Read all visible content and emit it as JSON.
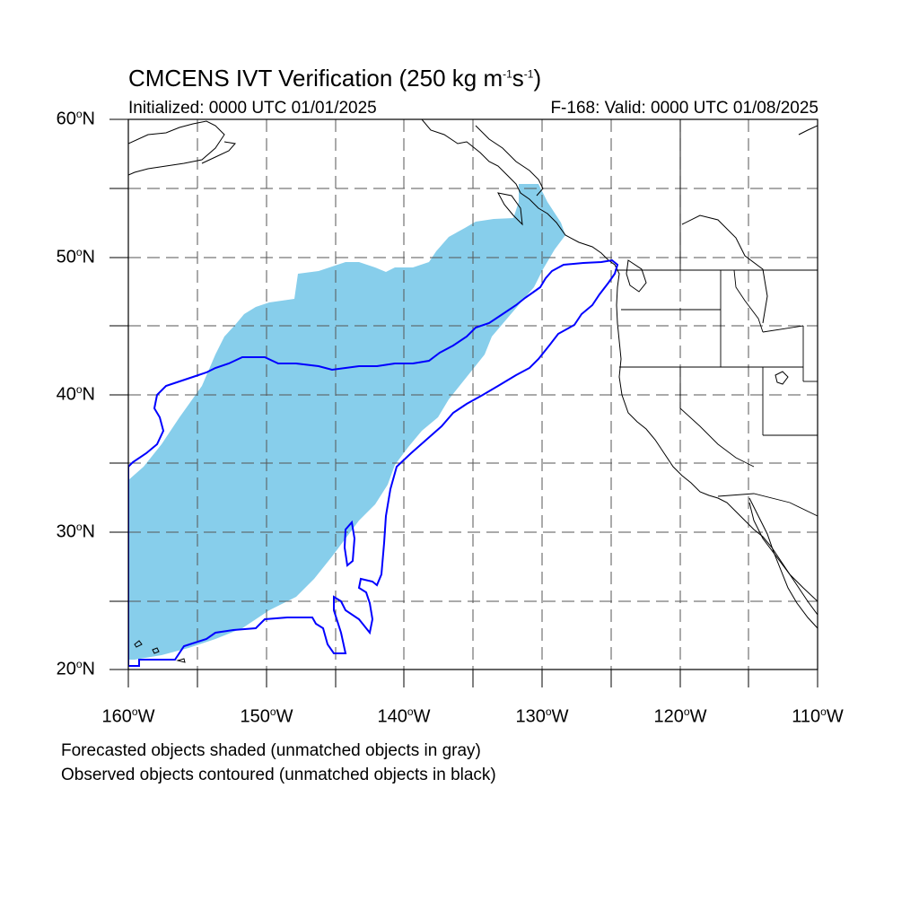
{
  "title": {
    "prefix": "CMCENS IVT Verification (250 kg m",
    "exp1": "-1",
    "mid": "s",
    "exp2": "-1",
    "suffix": ")"
  },
  "subtitle_left": "Initialized: 0000 UTC 01/01/2025",
  "subtitle_right": "F-168: Valid: 0000 UTC 01/08/2025",
  "map": {
    "extent": {
      "lon_min": -160,
      "lon_max": -110,
      "lat_min": 20,
      "lat_max": 60
    },
    "grid": "dashed, every 5 degrees",
    "forecast_fill_color": "#87ceeb",
    "observed_contour_color": "#0000ff",
    "coastline_color": "#000000"
  },
  "lat_labels": [
    {
      "deg": "60",
      "suffix": "N"
    },
    {
      "deg": "50",
      "suffix": "N"
    },
    {
      "deg": "40",
      "suffix": "N"
    },
    {
      "deg": "30",
      "suffix": "N"
    },
    {
      "deg": "20",
      "suffix": "N"
    }
  ],
  "lon_labels": [
    {
      "deg": "160",
      "suffix": "W"
    },
    {
      "deg": "150",
      "suffix": "W"
    },
    {
      "deg": "140",
      "suffix": "W"
    },
    {
      "deg": "130",
      "suffix": "W"
    },
    {
      "deg": "120",
      "suffix": "W"
    },
    {
      "deg": "110",
      "suffix": "W"
    }
  ],
  "footnotes": [
    "Forecasted objects shaded (unmatched objects in gray)",
    "Observed objects contoured (unmatched objects in black)"
  ]
}
